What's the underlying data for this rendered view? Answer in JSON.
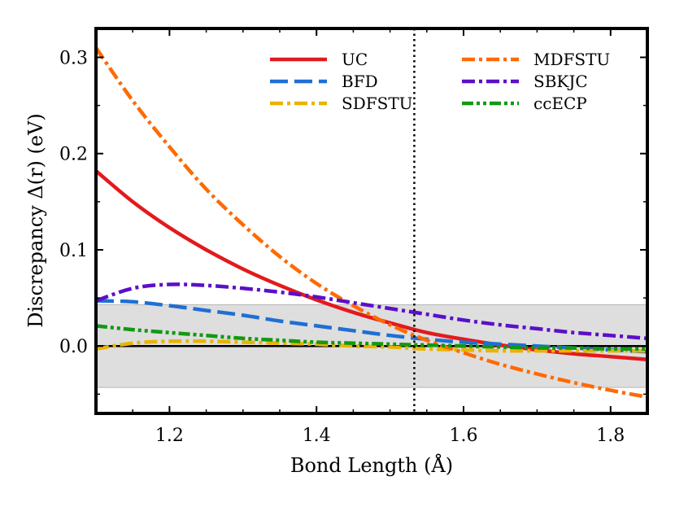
{
  "chart_data": {
    "type": "line",
    "xlabel": "Bond Length (Å)",
    "ylabel": "Discrepancy Δ(r) (eV)",
    "xlim": [
      1.1,
      1.85
    ],
    "ylim": [
      -0.07,
      0.33
    ],
    "xticks": [
      1.2,
      1.4,
      1.6,
      1.8
    ],
    "xtick_labels": [
      "1.2",
      "1.4",
      "1.6",
      "1.8"
    ],
    "yticks": [
      0.0,
      0.1,
      0.2,
      0.3
    ],
    "ytick_labels": [
      "0.0",
      "0.1",
      "0.2",
      "0.3"
    ],
    "chemical_accuracy_band": [
      -0.043,
      0.043
    ],
    "reference_line_y": 0.0,
    "equilibrium_x": 1.533,
    "series": [
      {
        "name": "UC",
        "color": "#e31a1c",
        "dash": "solid",
        "x": [
          1.1,
          1.15,
          1.2,
          1.25,
          1.3,
          1.35,
          1.4,
          1.45,
          1.5,
          1.55,
          1.6,
          1.65,
          1.7,
          1.75,
          1.8,
          1.85
        ],
        "y": [
          0.182,
          0.15,
          0.123,
          0.1,
          0.08,
          0.063,
          0.048,
          0.035,
          0.024,
          0.014,
          0.007,
          0.001,
          -0.004,
          -0.008,
          -0.011,
          -0.014
        ]
      },
      {
        "name": "BFD",
        "color": "#1f6fd4",
        "dash": "long-dash",
        "x": [
          1.1,
          1.15,
          1.2,
          1.25,
          1.3,
          1.35,
          1.4,
          1.45,
          1.5,
          1.55,
          1.6,
          1.65,
          1.7,
          1.75,
          1.8,
          1.85
        ],
        "y": [
          0.047,
          0.046,
          0.042,
          0.037,
          0.032,
          0.026,
          0.021,
          0.016,
          0.011,
          0.007,
          0.004,
          0.002,
          0.0,
          -0.002,
          -0.004,
          -0.006
        ]
      },
      {
        "name": "SDFSTU",
        "color": "#e8b400",
        "dash": "dash-dot",
        "x": [
          1.1,
          1.15,
          1.2,
          1.25,
          1.3,
          1.35,
          1.4,
          1.45,
          1.5,
          1.55,
          1.6,
          1.65,
          1.7,
          1.75,
          1.8,
          1.85
        ],
        "y": [
          -0.003,
          0.003,
          0.005,
          0.005,
          0.004,
          0.003,
          0.002,
          0.0,
          -0.001,
          -0.003,
          -0.004,
          -0.005,
          -0.005,
          -0.005,
          -0.005,
          -0.005
        ]
      },
      {
        "name": "MDFSTU",
        "color": "#ff6a00",
        "dash": "dash-dot",
        "x": [
          1.1,
          1.15,
          1.2,
          1.25,
          1.3,
          1.35,
          1.4,
          1.45,
          1.5,
          1.55,
          1.6,
          1.65,
          1.7,
          1.75,
          1.8,
          1.85
        ],
        "y": [
          0.31,
          0.255,
          0.207,
          0.163,
          0.126,
          0.093,
          0.065,
          0.042,
          0.022,
          0.006,
          -0.007,
          -0.019,
          -0.029,
          -0.038,
          -0.046,
          -0.053
        ]
      },
      {
        "name": "SBKJC",
        "color": "#5b0fc9",
        "dash": "dash-dot",
        "x": [
          1.1,
          1.15,
          1.2,
          1.25,
          1.3,
          1.35,
          1.4,
          1.45,
          1.5,
          1.55,
          1.6,
          1.65,
          1.7,
          1.75,
          1.8,
          1.85
        ],
        "y": [
          0.047,
          0.06,
          0.064,
          0.063,
          0.06,
          0.056,
          0.051,
          0.045,
          0.039,
          0.033,
          0.027,
          0.022,
          0.018,
          0.014,
          0.011,
          0.008
        ]
      },
      {
        "name": "ccECP",
        "color": "#129912",
        "dash": "dash-dot-dot",
        "x": [
          1.1,
          1.15,
          1.2,
          1.25,
          1.3,
          1.35,
          1.4,
          1.45,
          1.5,
          1.55,
          1.6,
          1.65,
          1.7,
          1.75,
          1.8,
          1.85
        ],
        "y": [
          0.021,
          0.017,
          0.014,
          0.011,
          0.008,
          0.006,
          0.004,
          0.003,
          0.002,
          0.001,
          0.0,
          -0.001,
          -0.002,
          -0.002,
          -0.003,
          -0.003
        ]
      }
    ],
    "legend": {
      "placement": "top",
      "columns": 2
    }
  }
}
